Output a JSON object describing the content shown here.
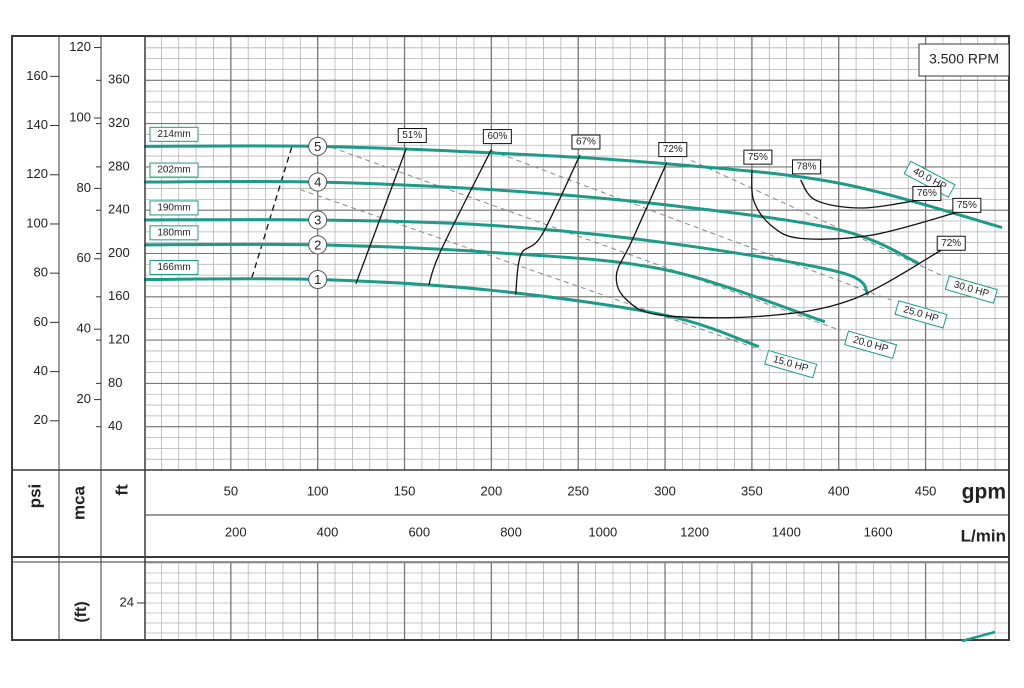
{
  "chart_data": {
    "type": "line",
    "annotation": "3.500 RPM",
    "x_label": "gpm",
    "x2_label": "L/min",
    "y_label": "ft",
    "y2_label": "mca",
    "y3_label": "psi",
    "xlim": [
      0,
      494
    ],
    "xticks": [
      50,
      100,
      150,
      200,
      250,
      300,
      350,
      400,
      450
    ],
    "x2lim": [
      0,
      1870
    ],
    "x2ticks": [
      200,
      400,
      600,
      800,
      1000,
      1200,
      1400,
      1600
    ],
    "ylim": [
      0,
      400
    ],
    "yticks": [
      40,
      80,
      120,
      160,
      200,
      240,
      280,
      320,
      360
    ],
    "y2lim": [
      0,
      123
    ],
    "y2ticks": [
      20,
      40,
      60,
      80,
      100,
      120
    ],
    "y3lim": [
      0,
      176
    ],
    "y3ticks": [
      20,
      40,
      60,
      80,
      100,
      120,
      140,
      160
    ],
    "grid": true,
    "color": "#1d9a88",
    "series": [
      {
        "name": "214mm",
        "marker": "5",
        "x": [
          0,
          100,
          200,
          300,
          400,
          494
        ],
        "values": [
          299,
          299,
          293,
          283,
          265,
          224
        ]
      },
      {
        "name": "202mm",
        "marker": "4",
        "x": [
          0,
          100,
          200,
          300,
          400,
          446
        ],
        "values": [
          266,
          266,
          259,
          245,
          222,
          191
        ]
      },
      {
        "name": "190mm",
        "marker": "3",
        "x": [
          0,
          100,
          200,
          300,
          400,
          417
        ],
        "values": [
          231,
          231,
          226,
          210,
          183,
          162
        ]
      },
      {
        "name": "180mm",
        "marker": "2",
        "x": [
          0,
          100,
          200,
          300,
          392
        ],
        "values": [
          208,
          208,
          201,
          185,
          137
        ]
      },
      {
        "name": "166mm",
        "marker": "1",
        "x": [
          0,
          100,
          200,
          300,
          354
        ],
        "values": [
          176,
          176,
          166,
          143,
          114
        ]
      }
    ],
    "efficiency_curves": [
      {
        "labels": [
          "51%"
        ],
        "x": [
          151,
          122
        ],
        "values": [
          297,
          172
        ]
      },
      {
        "labels": [
          "60%"
        ],
        "x": [
          200,
          171,
          164
        ],
        "values": [
          296,
          203,
          171
        ]
      },
      {
        "labels": [
          "67%"
        ],
        "x": [
          251,
          229,
          217,
          214
        ],
        "values": [
          291,
          217,
          199,
          162
        ]
      },
      {
        "labels": [
          "72%",
          "72%"
        ],
        "x": [
          301,
          281,
          272,
          278,
          298,
          355,
          407,
          459
        ],
        "values": [
          284,
          212,
          180,
          157,
          143,
          142,
          157,
          203
        ]
      },
      {
        "labels": [
          "75%",
          "75%"
        ],
        "x": [
          350,
          351,
          361,
          378,
          419,
          468
        ],
        "values": [
          277,
          249,
          226,
          214,
          217,
          238
        ]
      },
      {
        "labels": [
          "78%",
          "76%"
        ],
        "x": [
          378,
          387,
          413,
          445
        ],
        "values": [
          268,
          249,
          242,
          249
        ]
      }
    ],
    "power_lines": [
      {
        "label": "15.0 HP",
        "x": [
          90,
          355
        ],
        "values": [
          259,
          111
        ]
      },
      {
        "label": "20.0 HP",
        "x": [
          108,
          401
        ],
        "values": [
          298,
          129
        ]
      },
      {
        "label": "25.0 HP",
        "x": [
          200,
          430
        ],
        "values": [
          295,
          157
        ]
      },
      {
        "label": "30.0 HP",
        "x": [
          315,
          459
        ],
        "values": [
          286,
          180
        ]
      },
      {
        "label": "40.0 HP",
        "x": [
          436
        ],
        "values": [
          286
        ]
      }
    ],
    "limit_line": {
      "x": [
        85,
        62
      ],
      "values": [
        298,
        177
      ]
    }
  },
  "npsh_panel": {
    "y_label": "(ft)",
    "ylim": [
      20.3,
      28
    ],
    "yticks": [
      24
    ]
  }
}
